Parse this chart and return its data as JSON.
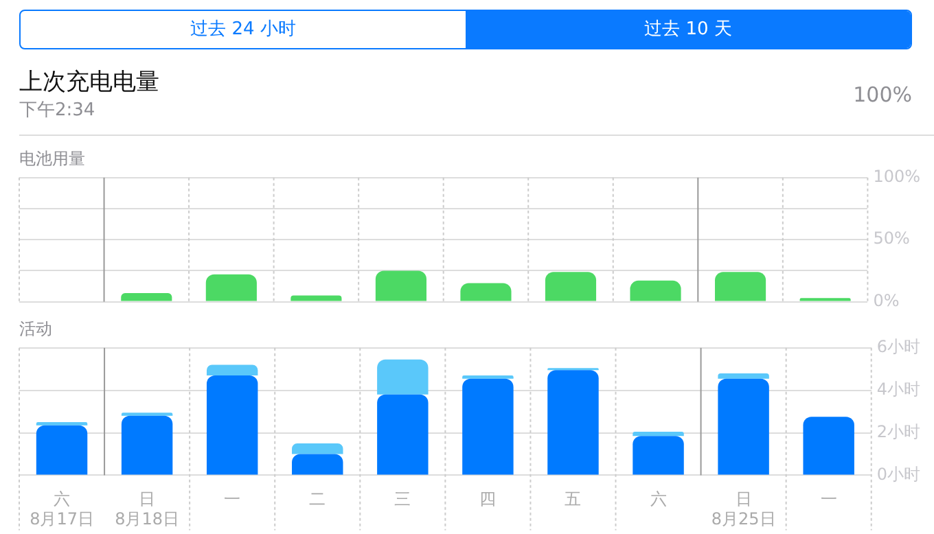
{
  "chart_data": [
    {
      "type": "other",
      "title": "上次充电电量",
      "subtitle": "下午2:34",
      "annotations": [
        "过去 24 小时",
        "过去 10 天",
        "100%"
      ]
    },
    {
      "type": "bar",
      "title": "电池用量",
      "categories": [
        null,
        null,
        null,
        null,
        null,
        null,
        null,
        null,
        null,
        null
      ],
      "values": [
        0,
        7,
        22,
        5,
        25,
        15,
        24,
        17,
        24,
        3
      ],
      "color": "#4cd964",
      "ylim": [
        0,
        100
      ],
      "yticks": [
        {
          "value": 0,
          "label": "0%"
        },
        {
          "value": 25,
          "label": null
        },
        {
          "value": 50,
          "label": "50%"
        },
        {
          "value": 75,
          "label": null
        },
        {
          "value": 100,
          "label": "100%"
        }
      ],
      "grid": true,
      "tick_labels": "y"
    },
    {
      "type": "bar",
      "title": "活动",
      "stacked": true,
      "categories": [
        "六\n8月17日",
        "日\n8月18日",
        "一",
        "二",
        "三",
        "四",
        "五",
        "六",
        "日\n8月25日",
        "一"
      ],
      "series": [
        {
          "color": "#007aff",
          "values": [
            2.35,
            2.8,
            4.7,
            1.0,
            3.8,
            4.55,
            4.95,
            1.85,
            4.55,
            2.75
          ]
        },
        {
          "color": "#5ac8fa",
          "values": [
            0.15,
            0.15,
            0.5,
            0.5,
            1.65,
            0.15,
            0.1,
            0.2,
            0.25,
            0
          ]
        }
      ],
      "ylim": [
        0,
        6
      ],
      "yticks": [
        {
          "value": 0,
          "label": "0小时"
        },
        {
          "value": 2,
          "label": "2小时"
        },
        {
          "value": 4,
          "label": "4小时"
        },
        {
          "value": 6,
          "label": "6小时"
        }
      ],
      "grid": true
    }
  ]
}
